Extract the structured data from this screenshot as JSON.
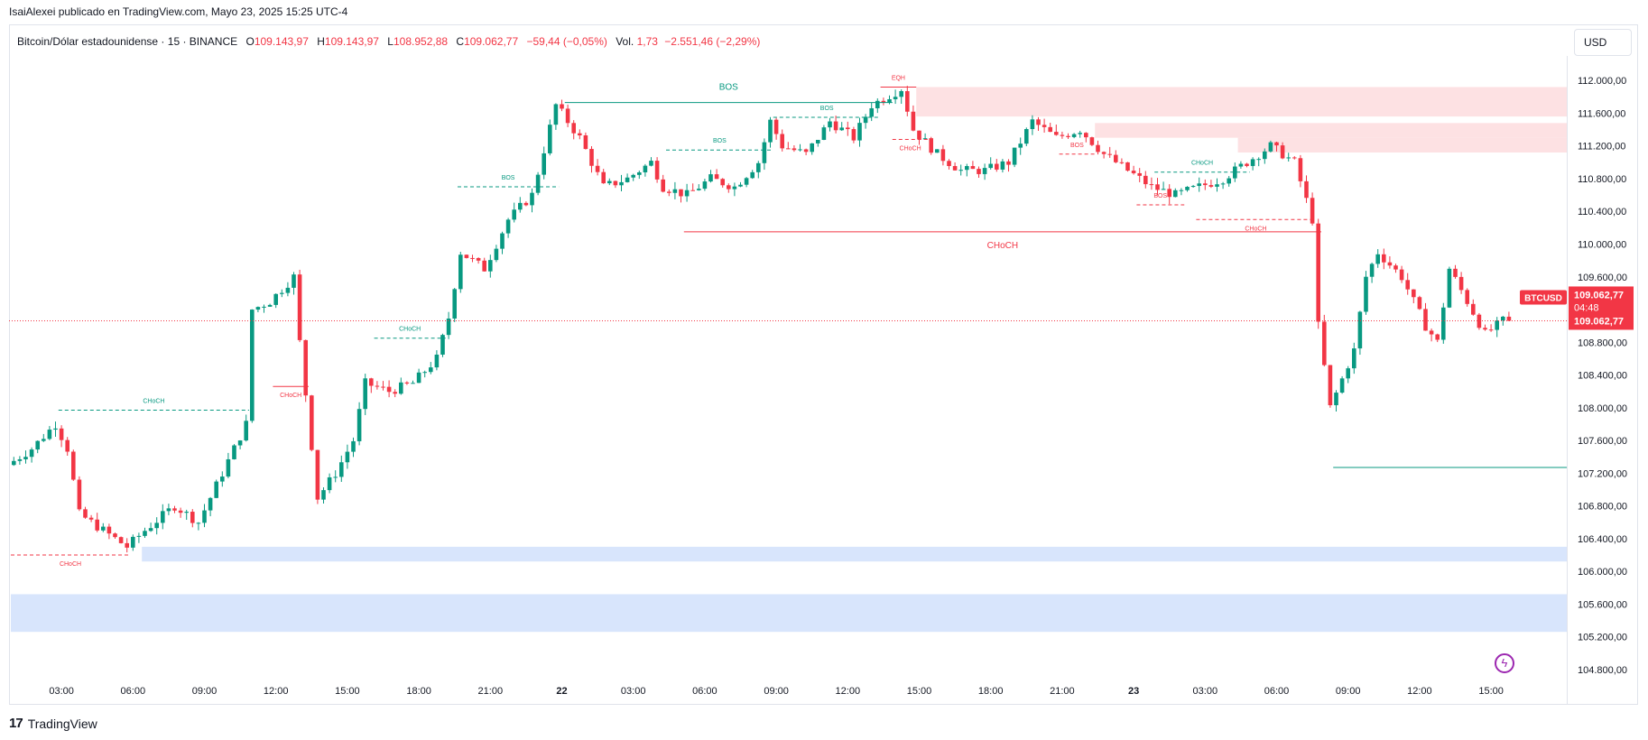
{
  "header": {
    "publisher_line": "IsaiAlexei publicado en TradingView.com, Mayo 23, 2025 15:25 UTC-4"
  },
  "legend": {
    "symbol": "Bitcoin/Dólar estadounidense · 15 · BINANCE",
    "o_label": "O",
    "o_value": "109.143,97",
    "h_label": "H",
    "h_value": "109.143,97",
    "l_label": "L",
    "l_value": "108.952,88",
    "c_label": "C",
    "c_value": "109.062,77",
    "change": "−59,44 (−0,05%)",
    "vol_label": "Vol.",
    "vol_value": "1,73",
    "vol_change": "−2.551,46 (−2,29%)"
  },
  "currency_button": "USD",
  "price_tags": {
    "ticker": "BTCUSD",
    "last_price": "109.062,77",
    "countdown": "04:48",
    "last_price_2": "109.062,77"
  },
  "brand": {
    "logo": "17",
    "name": "TradingView"
  },
  "colors": {
    "up": "#089981",
    "down": "#f23645",
    "supply_zone": "#fcd9dc",
    "demand_zone": "#d6e4fc",
    "current_price_line": "#f23645"
  },
  "chart_data": {
    "type": "candlestick",
    "ylim": [
      104600,
      112300
    ],
    "y_ticks": [
      "112.000,00",
      "111.600,00",
      "111.200,00",
      "110.800,00",
      "110.400,00",
      "110.000,00",
      "109.600,00",
      "109.200,00",
      "108.800,00",
      "108.400,00",
      "108.000,00",
      "107.600,00",
      "107.200,00",
      "106.800,00",
      "106.400,00",
      "106.000,00",
      "105.600,00",
      "105.200,00",
      "104.800,00"
    ],
    "y_tick_values": [
      112000,
      111600,
      111200,
      110800,
      110400,
      110000,
      109600,
      109200,
      108800,
      108400,
      108000,
      107600,
      107200,
      106800,
      106400,
      106000,
      105600,
      105200,
      104800
    ],
    "x_ticks": [
      "03:00",
      "06:00",
      "09:00",
      "12:00",
      "15:00",
      "18:00",
      "21:00",
      "22",
      "03:00",
      "06:00",
      "09:00",
      "12:00",
      "15:00",
      "18:00",
      "21:00",
      "23",
      "03:00",
      "06:00",
      "09:00",
      "12:00",
      "15:00"
    ],
    "x_tick_bar_index": [
      8,
      20,
      32,
      44,
      56,
      68,
      80,
      92,
      104,
      116,
      128,
      140,
      152,
      164,
      176,
      188,
      200,
      212,
      224,
      236,
      248
    ],
    "bar_interval_minutes": 15,
    "current_price": 109062.77,
    "path_points": [
      [
        0,
        107300
      ],
      [
        4,
        107500
      ],
      [
        8,
        107800
      ],
      [
        10,
        107500
      ],
      [
        12,
        106700
      ],
      [
        16,
        106500
      ],
      [
        20,
        106300
      ],
      [
        23,
        106500
      ],
      [
        28,
        106800
      ],
      [
        32,
        106600
      ],
      [
        36,
        107200
      ],
      [
        40,
        107800
      ],
      [
        41,
        109200
      ],
      [
        44,
        109300
      ],
      [
        48,
        109600
      ],
      [
        49,
        108800
      ],
      [
        52,
        106900
      ],
      [
        55,
        107200
      ],
      [
        58,
        107600
      ],
      [
        60,
        108300
      ],
      [
        64,
        108200
      ],
      [
        68,
        108300
      ],
      [
        72,
        108600
      ],
      [
        74,
        109100
      ],
      [
        76,
        109900
      ],
      [
        80,
        109700
      ],
      [
        84,
        110300
      ],
      [
        88,
        110600
      ],
      [
        92,
        111700
      ],
      [
        96,
        111300
      ],
      [
        100,
        110700
      ],
      [
        104,
        110800
      ],
      [
        108,
        111000
      ],
      [
        110,
        110700
      ],
      [
        114,
        110600
      ],
      [
        118,
        110800
      ],
      [
        122,
        110700
      ],
      [
        126,
        111000
      ],
      [
        128,
        111500
      ],
      [
        130,
        111200
      ],
      [
        134,
        111100
      ],
      [
        138,
        111500
      ],
      [
        142,
        111300
      ],
      [
        145,
        111700
      ],
      [
        150,
        111900
      ],
      [
        152,
        111400
      ],
      [
        156,
        111100
      ],
      [
        160,
        110900
      ],
      [
        164,
        110900
      ],
      [
        168,
        111000
      ],
      [
        172,
        111500
      ],
      [
        176,
        111300
      ],
      [
        180,
        111400
      ],
      [
        184,
        111100
      ],
      [
        188,
        110900
      ],
      [
        192,
        110700
      ],
      [
        196,
        110600
      ],
      [
        200,
        110700
      ],
      [
        204,
        110800
      ],
      [
        208,
        111000
      ],
      [
        212,
        111200
      ],
      [
        216,
        111000
      ],
      [
        219,
        110300
      ],
      [
        220,
        109000
      ],
      [
        222,
        108000
      ],
      [
        226,
        108700
      ],
      [
        228,
        109600
      ],
      [
        230,
        109900
      ],
      [
        234,
        109600
      ],
      [
        238,
        109000
      ],
      [
        240,
        108800
      ],
      [
        242,
        109700
      ],
      [
        245,
        109300
      ],
      [
        248,
        108900
      ],
      [
        251,
        109062.77
      ]
    ],
    "zones": [
      {
        "kind": "supply",
        "from_bar": 152,
        "top": 111920,
        "bottom": 111560
      },
      {
        "kind": "supply",
        "from_bar": 182,
        "top": 111480,
        "bottom": 111300
      },
      {
        "kind": "supply",
        "from_bar": 206,
        "top": 111300,
        "bottom": 111120
      },
      {
        "kind": "demand",
        "from_bar": 22,
        "top": 106300,
        "bottom": 106120
      },
      {
        "kind": "demand",
        "from_bar": 0,
        "top": 105720,
        "bottom": 105260
      }
    ],
    "structure_lines": [
      {
        "label": "BOS",
        "color": "up",
        "style": "solid",
        "from_bar": 93,
        "to_bar": 148,
        "price": 111730,
        "label_size": "large"
      },
      {
        "label": "CHoCH",
        "color": "up",
        "style": "dashed",
        "from_bar": 8,
        "to_bar": 40,
        "price": 107970
      },
      {
        "label": "CHoCH",
        "color": "down",
        "style": "dashed",
        "from_bar": 0,
        "to_bar": 20,
        "price": 106200
      },
      {
        "label": "CHoCH",
        "color": "down",
        "style": "solid",
        "from_bar": 44,
        "to_bar": 50,
        "price": 108260
      },
      {
        "label": "CHoCH",
        "color": "up",
        "style": "dashed",
        "from_bar": 61,
        "to_bar": 73,
        "price": 108850
      },
      {
        "label": "BOS",
        "color": "up",
        "style": "dashed",
        "from_bar": 75,
        "to_bar": 92,
        "price": 110700
      },
      {
        "label": "BOS",
        "color": "up",
        "style": "dashed",
        "from_bar": 110,
        "to_bar": 128,
        "price": 111150
      },
      {
        "label": "BOS",
        "color": "up",
        "style": "dashed",
        "from_bar": 128,
        "to_bar": 146,
        "price": 111550
      },
      {
        "label": "EQH",
        "color": "down",
        "style": "solid",
        "from_bar": 146,
        "to_bar": 152,
        "price": 111920
      },
      {
        "label": "CHoCH",
        "color": "down",
        "style": "dashed",
        "from_bar": 148,
        "to_bar": 154,
        "price": 111280
      },
      {
        "label": "CHoCH",
        "color": "down",
        "style": "solid",
        "from_bar": 113,
        "to_bar": 220,
        "price": 110150,
        "label_size": "large"
      },
      {
        "label": "BOS",
        "color": "down",
        "style": "dashed",
        "from_bar": 176,
        "to_bar": 182,
        "price": 111100
      },
      {
        "label": "CHoCH",
        "color": "up",
        "style": "dashed",
        "from_bar": 192,
        "to_bar": 208,
        "price": 110880
      },
      {
        "label": "BOS",
        "color": "down",
        "style": "dashed",
        "from_bar": 189,
        "to_bar": 197,
        "price": 110480
      },
      {
        "label": "CHoCH",
        "color": "down",
        "style": "dashed",
        "from_bar": 199,
        "to_bar": 219,
        "price": 110300
      },
      {
        "label": "",
        "color": "up",
        "style": "solid",
        "from_bar": 222,
        "to_bar": 262,
        "price": 107270
      }
    ]
  }
}
